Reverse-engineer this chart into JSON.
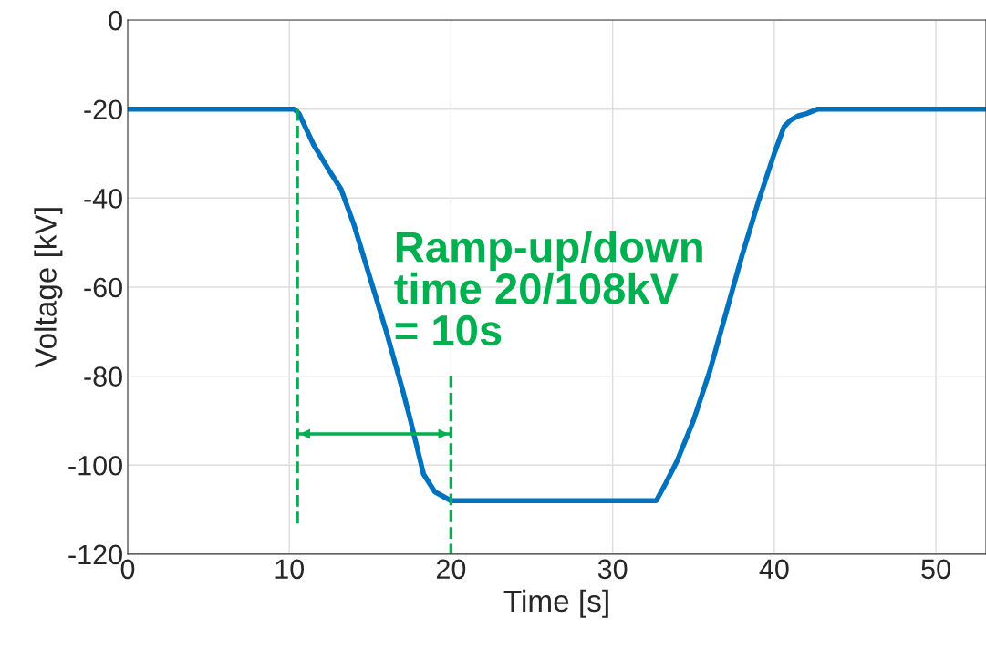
{
  "chart_data": {
    "type": "line",
    "xlabel": "Time [s]",
    "ylabel": "Voltage [kV]",
    "xlim": [
      0,
      53.1
    ],
    "ylim": [
      -120,
      0
    ],
    "xticks": [
      0,
      10,
      20,
      30,
      40,
      50
    ],
    "yticks": [
      -120,
      -100,
      -80,
      -60,
      -40,
      -20,
      0
    ],
    "grid": true,
    "legend": false,
    "series": [
      {
        "color": "#0072bd",
        "x": [
          0,
          5,
          10.3,
          10.6,
          11.5,
          12.5,
          13.2,
          14,
          15,
          16,
          17,
          17.5,
          17.9,
          18.3,
          19,
          20,
          25,
          30,
          32.7,
          33.3,
          34,
          35,
          36,
          37,
          38,
          39,
          40,
          40.6,
          41,
          41.5,
          42,
          42.7,
          45,
          50,
          53.1
        ],
        "values": [
          -20,
          -20,
          -20,
          -21,
          -28,
          -34,
          -38,
          -46,
          -58,
          -70,
          -83,
          -90,
          -96,
          -102,
          -106,
          -108,
          -108,
          -108,
          -108,
          -104,
          -99,
          -90,
          -79,
          -66,
          -53,
          -41,
          -30,
          -24,
          -22.5,
          -21.5,
          -21,
          -20,
          -20,
          -20,
          -20
        ]
      },
      {
        "type": "line",
        "color": "#00b050",
        "line_style": "dashed",
        "x": [
          10.5,
          10.5
        ],
        "values": [
          -20,
          -114
        ]
      },
      {
        "type": "line",
        "color": "#00b050",
        "line_style": "dashed",
        "x": [
          20,
          20
        ],
        "values": [
          -80,
          -120
        ]
      },
      {
        "type": "line",
        "color": "#00b050",
        "line_style": "solid",
        "x": [
          10.5,
          20
        ],
        "values": [
          -93,
          -93
        ]
      }
    ],
    "annotations": [
      "Ramp-up/down\ntime 20/108kV\n= 10s"
    ]
  }
}
